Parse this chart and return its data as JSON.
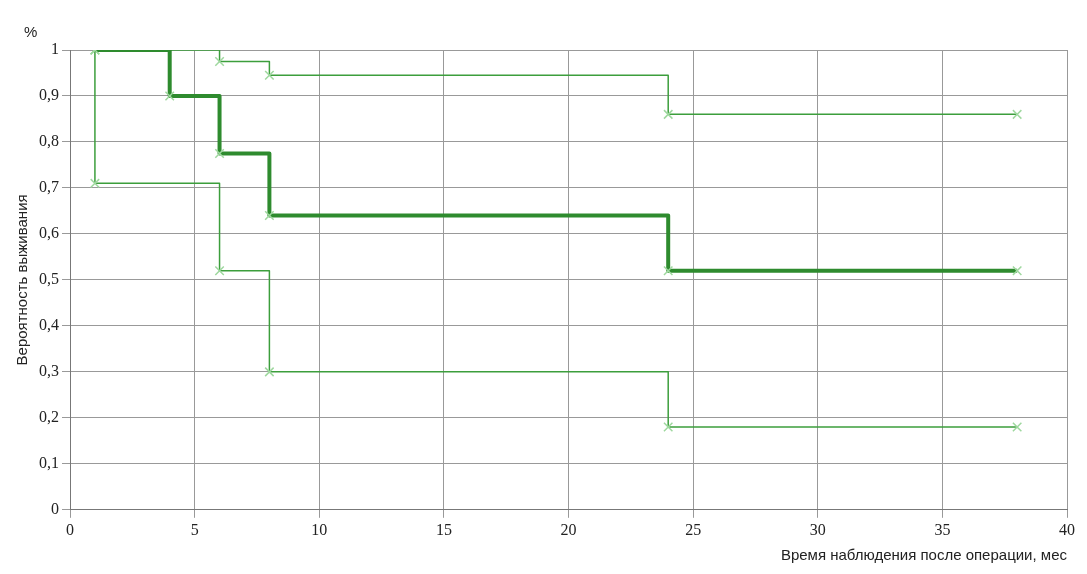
{
  "chart_data": {
    "type": "step",
    "xlabel": "Время наблюдения после операции, мес",
    "ylabel": "Вероятность выживания",
    "annotations": [
      "%"
    ],
    "xlim": [
      0,
      40
    ],
    "xticks": [
      0,
      5,
      10,
      15,
      20,
      25,
      30,
      35,
      40
    ],
    "ylim": [
      0,
      1
    ],
    "yticks": [
      {
        "value": 0,
        "label": "0"
      },
      {
        "value": 0.1,
        "label": "0,1"
      },
      {
        "value": 0.2,
        "label": "0,2"
      },
      {
        "value": 0.3,
        "label": "0,3"
      },
      {
        "value": 0.4,
        "label": "0,4"
      },
      {
        "value": 0.5,
        "label": "0,5"
      },
      {
        "value": 0.6,
        "label": "0,6"
      },
      {
        "value": 0.7,
        "label": "0,7"
      },
      {
        "value": 0.8,
        "label": "0,8"
      },
      {
        "value": 0.9,
        "label": "0,9"
      },
      {
        "value": 1,
        "label": "1"
      }
    ],
    "grid": true,
    "legend": false,
    "marker": "cross",
    "line_style": "solid",
    "series": [
      {
        "color": "#2e8b2e",
        "x": [
          1,
          4,
          6,
          8,
          24,
          38
        ],
        "values": [
          1,
          0.9,
          0.775,
          0.64,
          0.52,
          0.52
        ]
      },
      {
        "color": "#3c9e3c",
        "x": [
          1,
          6,
          8,
          24,
          38
        ],
        "values": [
          1,
          0.975,
          0.945,
          0.86,
          0.86
        ]
      },
      {
        "color": "#3c9e3c",
        "x": [
          1,
          1,
          6,
          8,
          24,
          38
        ],
        "values": [
          1,
          0.71,
          0.52,
          0.3,
          0.18,
          0.18
        ]
      }
    ]
  }
}
